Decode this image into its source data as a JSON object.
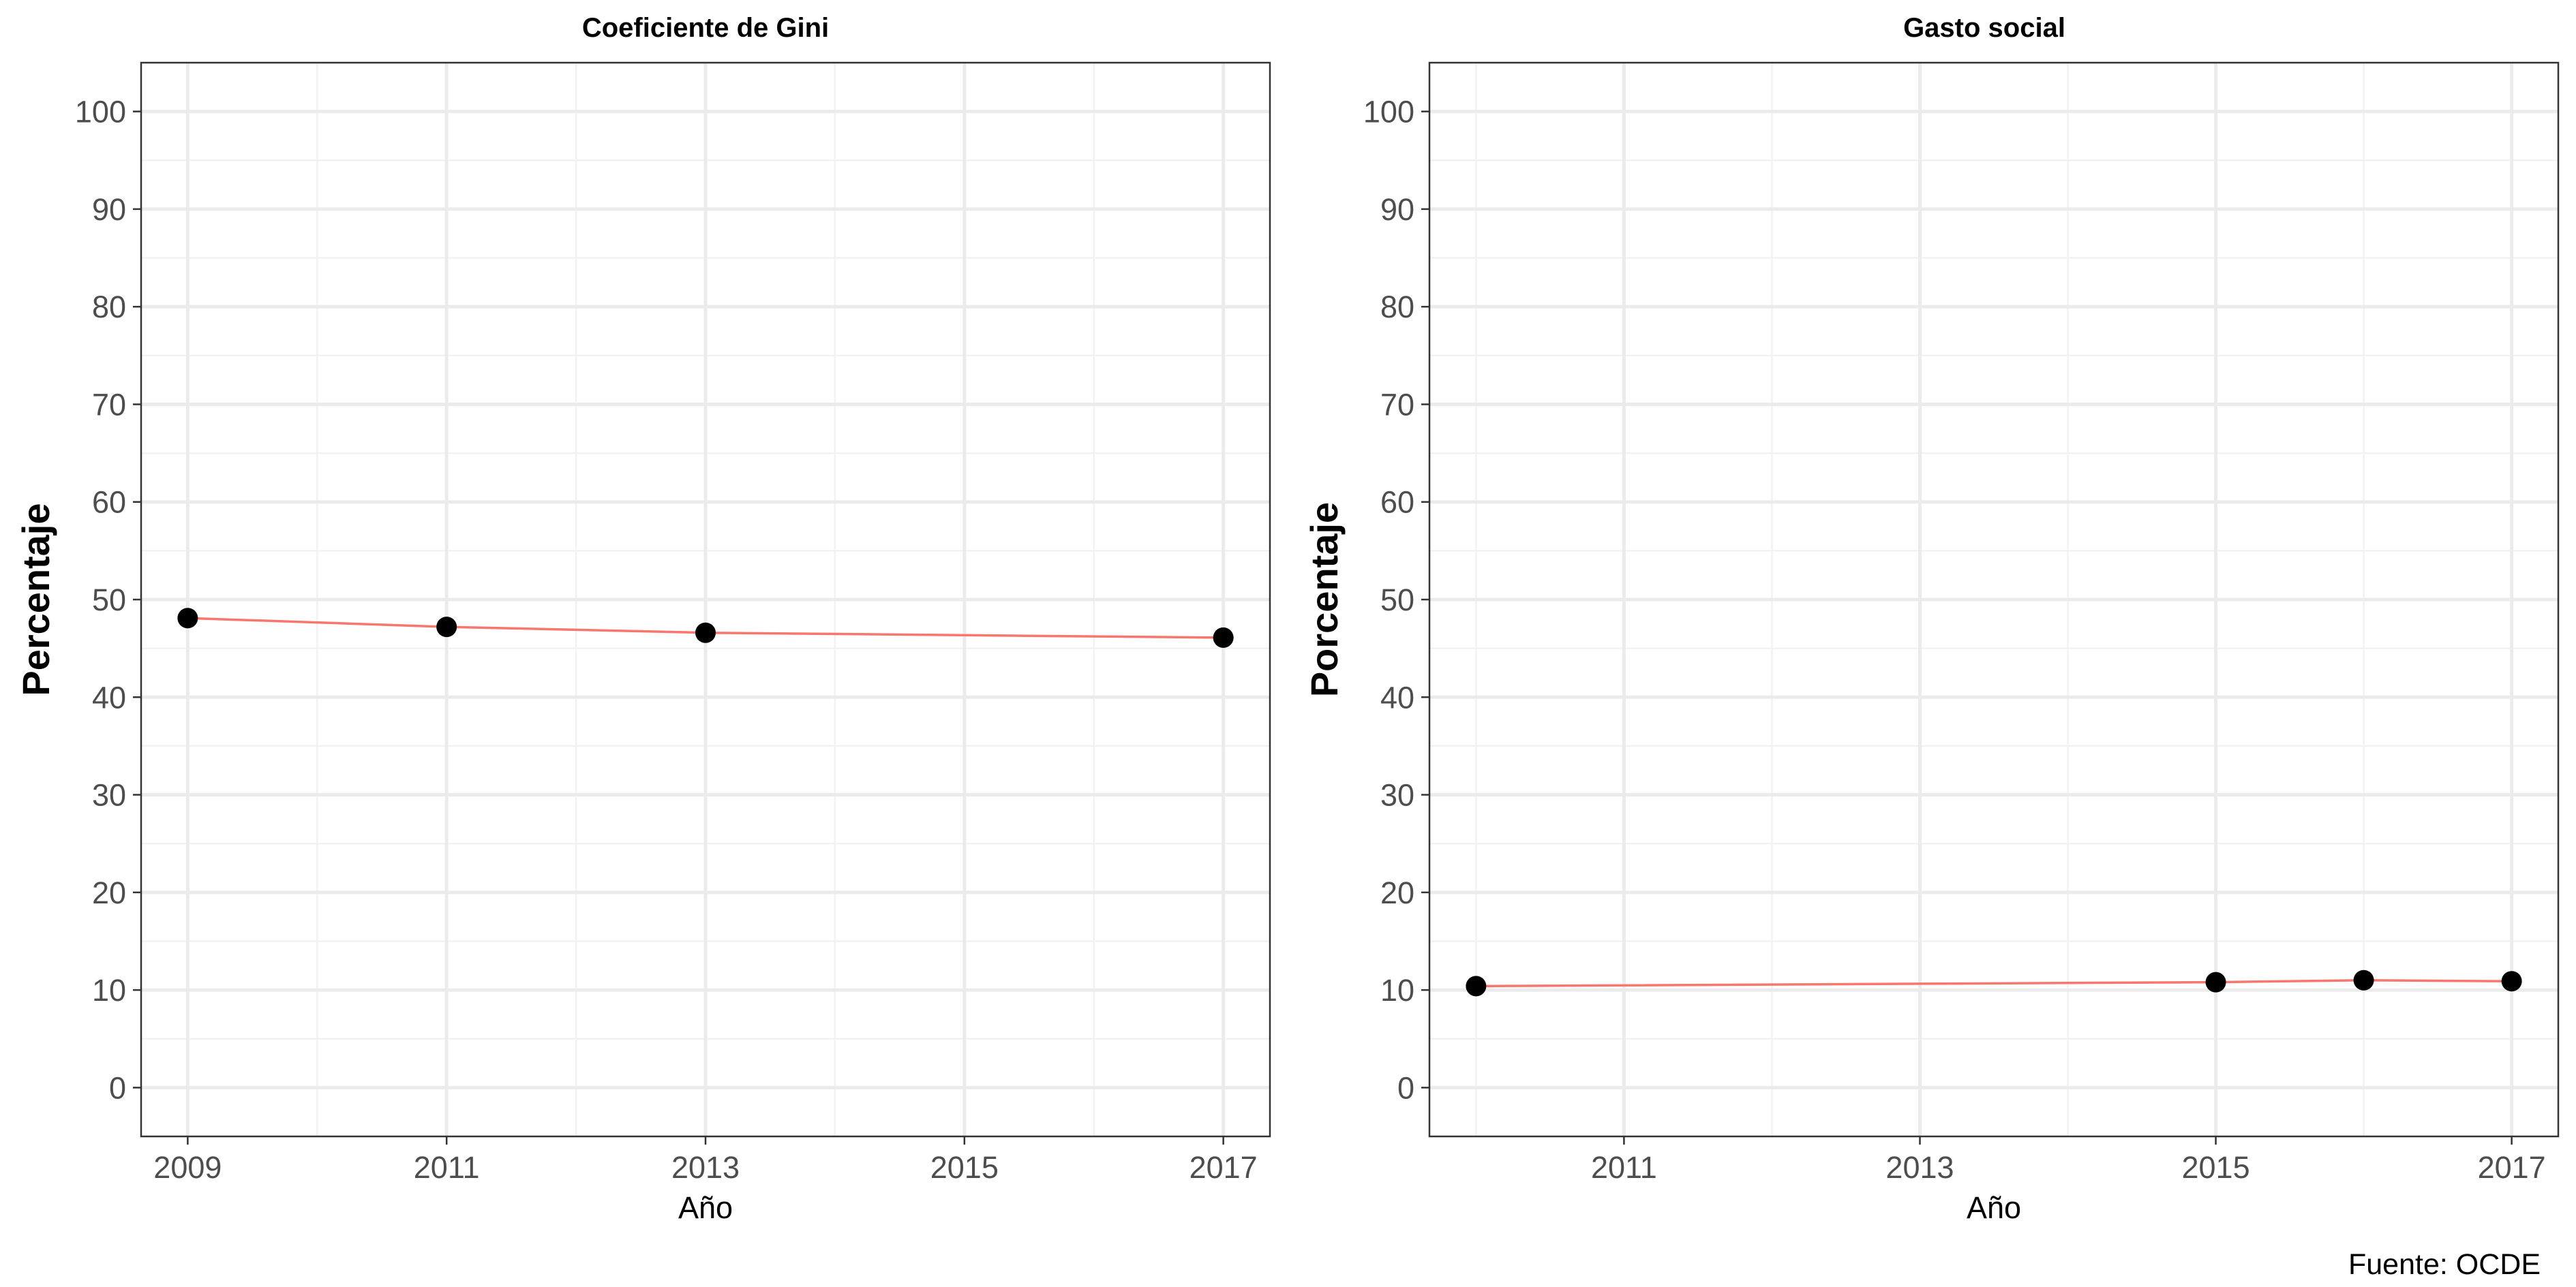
{
  "caption": "Fuente: OCDE",
  "chart_data": [
    {
      "type": "line",
      "title": "Coeficiente de Gini",
      "xlabel": "Año",
      "ylabel": "Percentaje",
      "x": [
        2009,
        2011,
        2013,
        2017
      ],
      "series": [
        {
          "values": [
            48.1,
            47.2,
            46.6,
            46.1
          ],
          "line_color": "#F8766D",
          "point_color": "#000000"
        }
      ],
      "xlim": [
        2009,
        2017
      ],
      "ylim": [
        -5,
        105
      ],
      "xticks": [
        2009,
        2011,
        2013,
        2015,
        2017
      ],
      "yticks": [
        0,
        10,
        20,
        30,
        40,
        50,
        60,
        70,
        80,
        90,
        100
      ],
      "grid": true,
      "legend": "none"
    },
    {
      "type": "line",
      "title": "Gasto social",
      "xlabel": "Año",
      "ylabel": "Porcentaje",
      "x": [
        2010,
        2015,
        2016,
        2017
      ],
      "series": [
        {
          "values": [
            10.4,
            10.8,
            11.0,
            10.9
          ],
          "line_color": "#F8766D",
          "point_color": "#000000"
        }
      ],
      "xlim": [
        2010,
        2017
      ],
      "ylim": [
        -5,
        105
      ],
      "xticks": [
        2011,
        2013,
        2015,
        2017
      ],
      "yticks": [
        0,
        10,
        20,
        30,
        40,
        50,
        60,
        70,
        80,
        90,
        100
      ],
      "grid": true,
      "legend": "none"
    }
  ]
}
